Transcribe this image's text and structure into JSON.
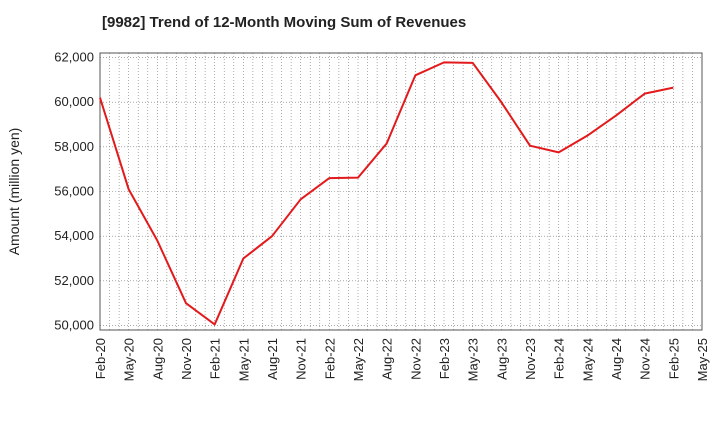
{
  "chart_data": {
    "type": "line",
    "title": "[9982]  Trend of 12-Month Moving Sum of Revenues",
    "ylabel": "Amount (million yen)",
    "xlabel": "",
    "ylim": [
      49800,
      62200
    ],
    "yticks": [
      50000,
      52000,
      54000,
      56000,
      58000,
      60000,
      62000
    ],
    "ytick_labels": [
      "50,000",
      "52,000",
      "54,000",
      "56,000",
      "58,000",
      "60,000",
      "62,000"
    ],
    "xtick_labels": [
      "Feb-20",
      "May-20",
      "Aug-20",
      "Nov-20",
      "Feb-21",
      "May-21",
      "Aug-21",
      "Nov-21",
      "Feb-22",
      "May-22",
      "Aug-22",
      "Nov-22",
      "Feb-23",
      "May-23",
      "Aug-23",
      "Nov-23",
      "Feb-24",
      "May-24",
      "Aug-24",
      "Nov-24",
      "Feb-25",
      "May-25"
    ],
    "grid": true,
    "series": [
      {
        "color": "#e31a1c",
        "x": [
          "Feb-20",
          "May-20",
          "Aug-20",
          "Nov-20",
          "Feb-21",
          "May-21",
          "Aug-21",
          "Nov-21",
          "Feb-22",
          "May-22",
          "Aug-22",
          "Nov-22",
          "Feb-23",
          "May-23",
          "Aug-23",
          "Nov-23",
          "Feb-24",
          "May-24",
          "Aug-24",
          "Nov-24",
          "Feb-25"
        ],
        "values": [
          60200,
          56100,
          53800,
          51000,
          50050,
          53000,
          54000,
          55650,
          56600,
          56620,
          58150,
          61200,
          61780,
          61760,
          60000,
          58050,
          57750,
          58500,
          59400,
          60380,
          60650
        ]
      }
    ]
  }
}
